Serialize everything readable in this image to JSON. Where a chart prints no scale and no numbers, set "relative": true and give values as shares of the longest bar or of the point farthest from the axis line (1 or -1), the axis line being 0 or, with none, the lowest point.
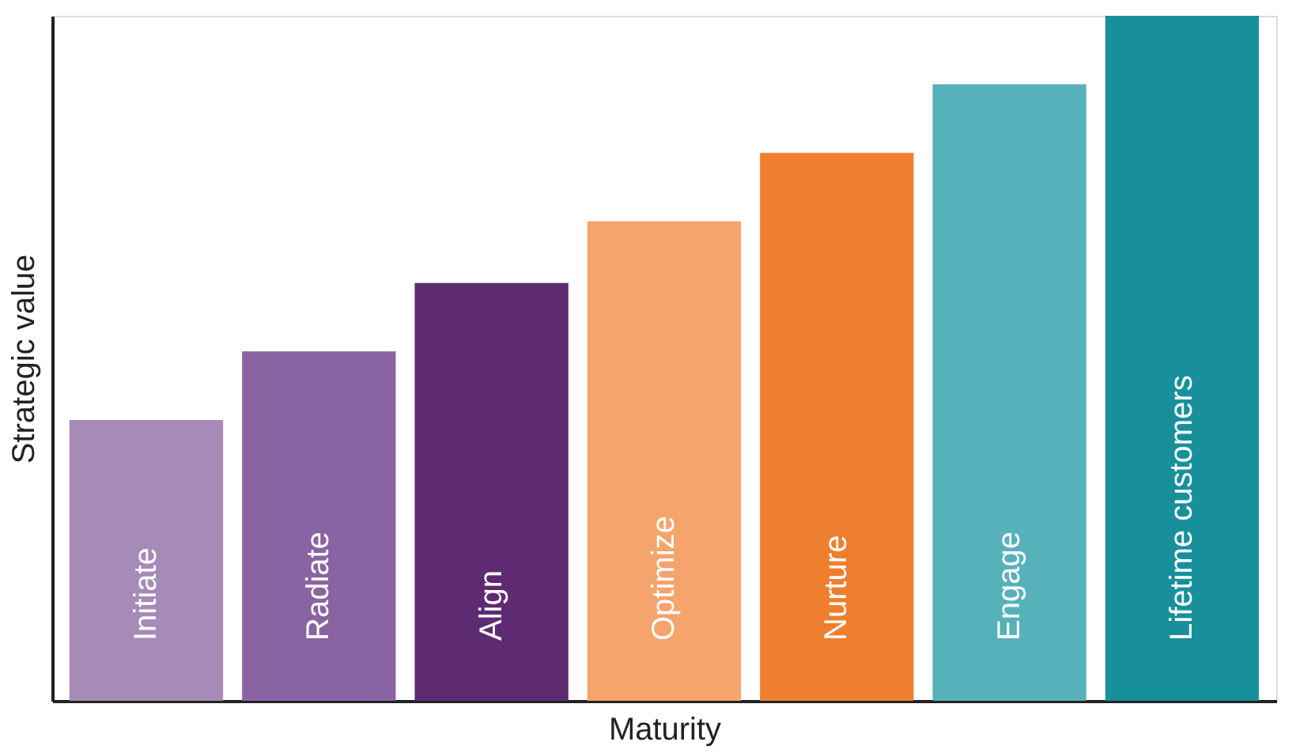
{
  "chart_data": {
    "type": "bar",
    "relative": true,
    "xlabel": "Maturity",
    "ylabel": "Strategic value",
    "tick_labels": false,
    "grid": false,
    "legend": false,
    "categories": [
      "Initiate",
      "Radiate",
      "Align",
      "Optimize",
      "Nurture",
      "Engage",
      "Lifetime customers"
    ],
    "values": [
      0.41,
      0.51,
      0.61,
      0.7,
      0.8,
      0.9,
      1.0
    ],
    "colors": [
      "#a68bb8",
      "#8a63a2",
      "#5e2a72",
      "#f4a46c",
      "#ee7f2f",
      "#56b1ba",
      "#18909b"
    ]
  }
}
